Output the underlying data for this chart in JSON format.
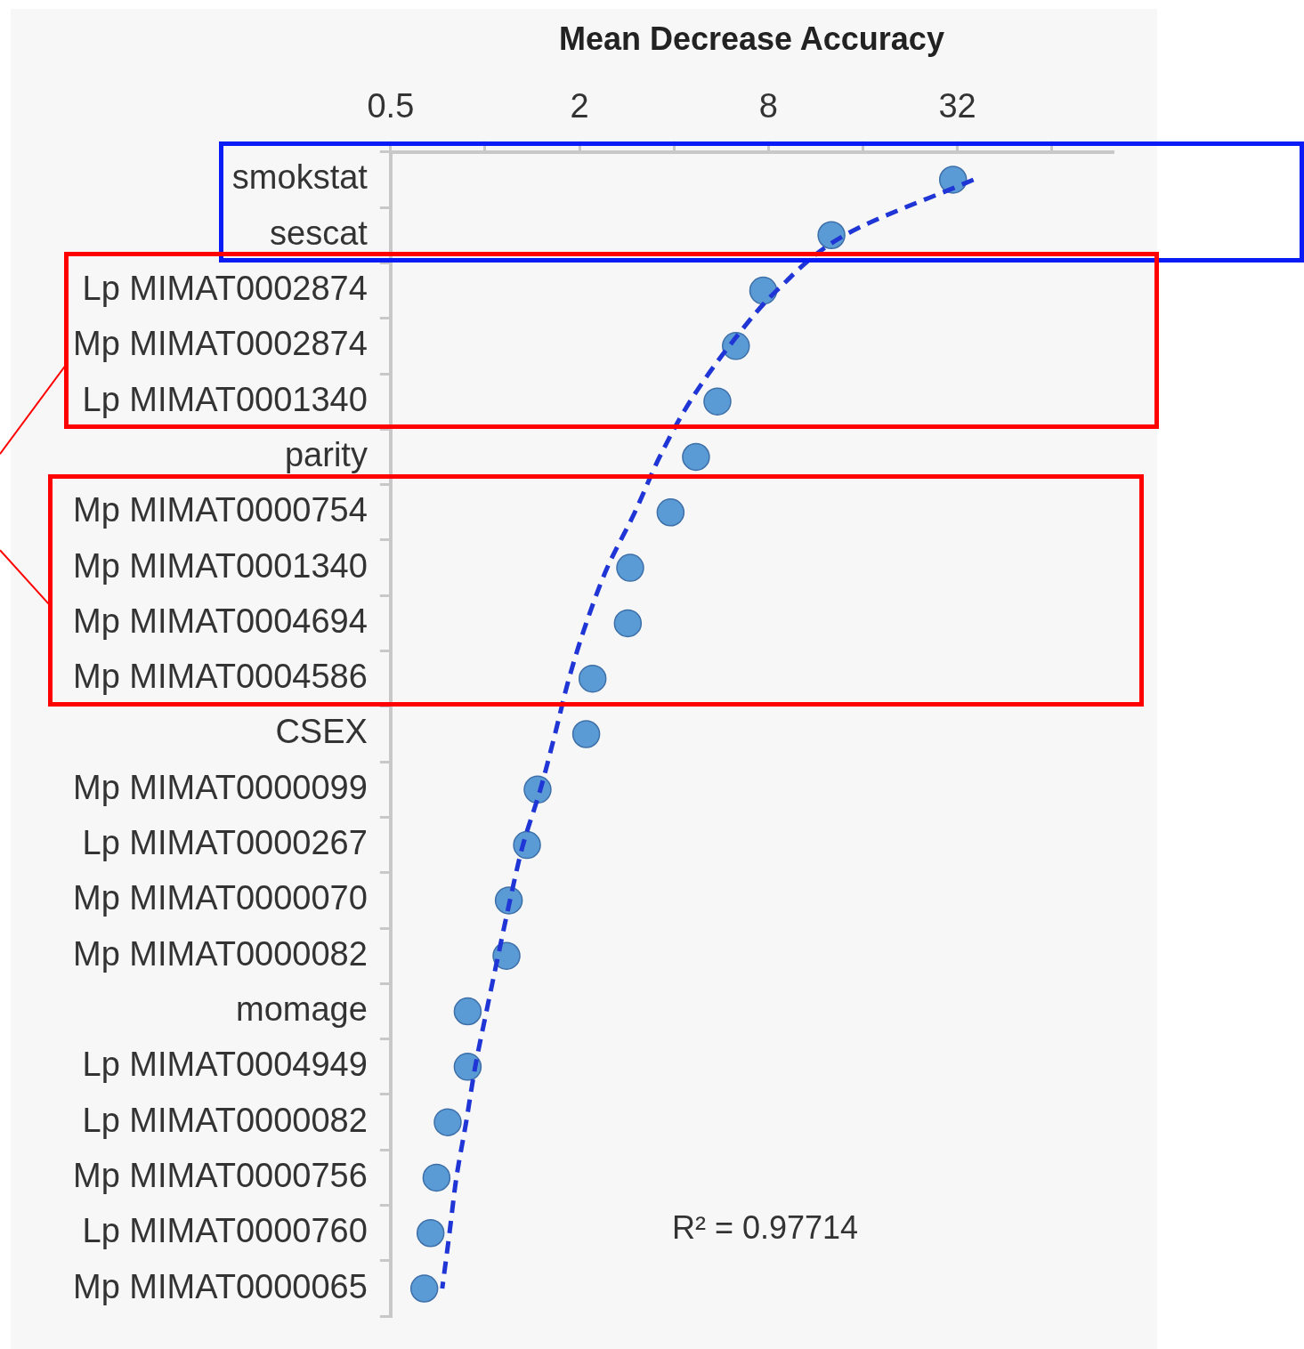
{
  "chart_data": {
    "type": "scatter",
    "orientation": "horizontal",
    "xlabel": "Mean Decrease Accuracy",
    "categories": [
      "smokstat",
      "sescat",
      "Lp MIMAT0002874",
      "Mp MIMAT0002874",
      "Lp MIMAT0001340",
      "parity",
      "Mp MIMAT0000754",
      "Mp MIMAT0001340",
      "Mp MIMAT0004694",
      "Mp MIMAT0004586",
      "CSEX",
      "Mp MIMAT0000099",
      "Lp MIMAT0000267",
      "Mp MIMAT0000070",
      "Mp MIMAT0000082",
      "momage",
      "Lp MIMAT0004949",
      "Lp MIMAT0000082",
      "Mp MIMAT0000756",
      "Lp MIMAT0000760",
      "Mp MIMAT0000065"
    ],
    "series": [
      {
        "type": "scatter",
        "color": "#5b9bd5",
        "marker": "circle",
        "values": [
          31,
          12.7,
          7.7,
          6.3,
          5.5,
          4.7,
          3.9,
          2.9,
          2.85,
          2.2,
          2.1,
          1.47,
          1.36,
          1.19,
          1.17,
          0.88,
          0.88,
          0.76,
          0.7,
          0.67,
          0.64
        ]
      },
      {
        "type": "line",
        "color": "#1f35d6",
        "marker": "none",
        "line_style": "dashed",
        "values": [
          36,
          14,
          8.5,
          6,
          4.5,
          3.6,
          3,
          2.45,
          2.1,
          1.85,
          1.67,
          1.5,
          1.32,
          1.2,
          1.1,
          1.01,
          0.93,
          0.87,
          0.81,
          0.77,
          0.73
        ]
      }
    ],
    "xlim": [
      0.5,
      100
    ],
    "xticks": [
      0.5,
      {
        "value": 1,
        "label": null
      },
      2,
      {
        "value": 4,
        "label": null
      },
      8,
      {
        "value": 16,
        "label": null
      },
      32,
      {
        "value": 64,
        "label": null
      }
    ],
    "log": "x",
    "grid": false,
    "legend": false,
    "annotations": [
      "R² = 0.97714"
    ]
  }
}
